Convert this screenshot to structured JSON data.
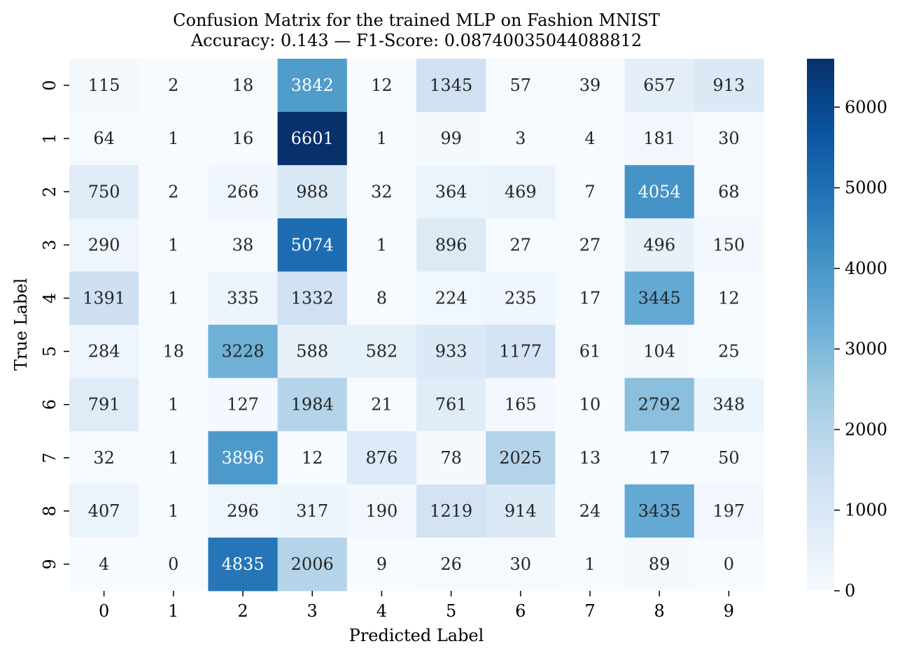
{
  "chart_data": {
    "type": "heatmap",
    "title_line1": "Confusion Matrix for the trained MLP on Fashion MNIST",
    "title_line2": "Accuracy: 0.143 — F1-Score: 0.08740035044088812",
    "xlabel": "Predicted Label",
    "ylabel": "True Label",
    "x_categories": [
      "0",
      "1",
      "2",
      "3",
      "4",
      "5",
      "6",
      "7",
      "8",
      "9"
    ],
    "y_categories": [
      "0",
      "1",
      "2",
      "3",
      "4",
      "5",
      "6",
      "7",
      "8",
      "9"
    ],
    "values": [
      [
        115,
        2,
        18,
        3842,
        12,
        1345,
        57,
        39,
        657,
        913
      ],
      [
        64,
        1,
        16,
        6601,
        1,
        99,
        3,
        4,
        181,
        30
      ],
      [
        750,
        2,
        266,
        988,
        32,
        364,
        469,
        7,
        4054,
        68
      ],
      [
        290,
        1,
        38,
        5074,
        1,
        896,
        27,
        27,
        496,
        150
      ],
      [
        1391,
        1,
        335,
        1332,
        8,
        224,
        235,
        17,
        3445,
        12
      ],
      [
        284,
        18,
        3228,
        588,
        582,
        933,
        1177,
        61,
        104,
        25
      ],
      [
        791,
        1,
        127,
        1984,
        21,
        761,
        165,
        10,
        2792,
        348
      ],
      [
        32,
        1,
        3896,
        12,
        876,
        78,
        2025,
        13,
        17,
        50
      ],
      [
        407,
        1,
        296,
        317,
        190,
        1219,
        914,
        24,
        3435,
        197
      ],
      [
        4,
        0,
        4835,
        2006,
        9,
        26,
        30,
        1,
        89,
        0
      ]
    ],
    "colorscale": "Blues",
    "color_range": [
      0,
      6601
    ],
    "colorbar_ticks": [
      0,
      1000,
      2000,
      3000,
      4000,
      5000,
      6000
    ],
    "colorbar_tick_labels": [
      "0",
      "1000",
      "2000",
      "3000",
      "4000",
      "5000",
      "6000"
    ],
    "grid": false
  }
}
